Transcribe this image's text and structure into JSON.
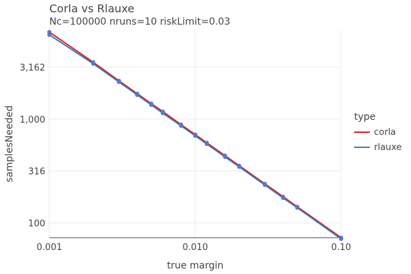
{
  "chart_data": {
    "type": "line",
    "title": "Corla vs Rlauxe",
    "subtitle": "Nc=100000 nruns=10 riskLimit=0.03",
    "xlabel": "true margin",
    "ylabel": "samplesNeeded",
    "x_scale": "log",
    "y_scale": "log",
    "xlim": [
      0.001,
      0.1
    ],
    "ylim": [
      72,
      7200
    ],
    "x_ticks": [
      {
        "value": 0.001,
        "label": "0.001"
      },
      {
        "value": 0.01,
        "label": "0.010"
      },
      {
        "value": 0.1,
        "label": "0.10"
      }
    ],
    "y_ticks": [
      {
        "value": 100,
        "label": "100"
      },
      {
        "value": 316,
        "label": "316"
      },
      {
        "value": 1000,
        "label": "1,000"
      },
      {
        "value": 3162,
        "label": "3,162"
      }
    ],
    "grid": true,
    "legend": {
      "title": "type",
      "position": "right"
    },
    "x": [
      0.001,
      0.002,
      0.003,
      0.004,
      0.005,
      0.006,
      0.008,
      0.01,
      0.012,
      0.016,
      0.02,
      0.03,
      0.04,
      0.05,
      0.1
    ],
    "series": [
      {
        "name": "corla",
        "color": "#e41a1c",
        "values": [
          6900,
          3530,
          2340,
          1760,
          1410,
          1180,
          885,
          710,
          592,
          445,
          356,
          238,
          179,
          143,
          72
        ]
      },
      {
        "name": "rlauxe",
        "color": "#377eb8",
        "values": [
          6500,
          3420,
          2280,
          1710,
          1370,
          1140,
          860,
          690,
          575,
          432,
          347,
          232,
          174,
          140,
          70
        ]
      }
    ]
  }
}
